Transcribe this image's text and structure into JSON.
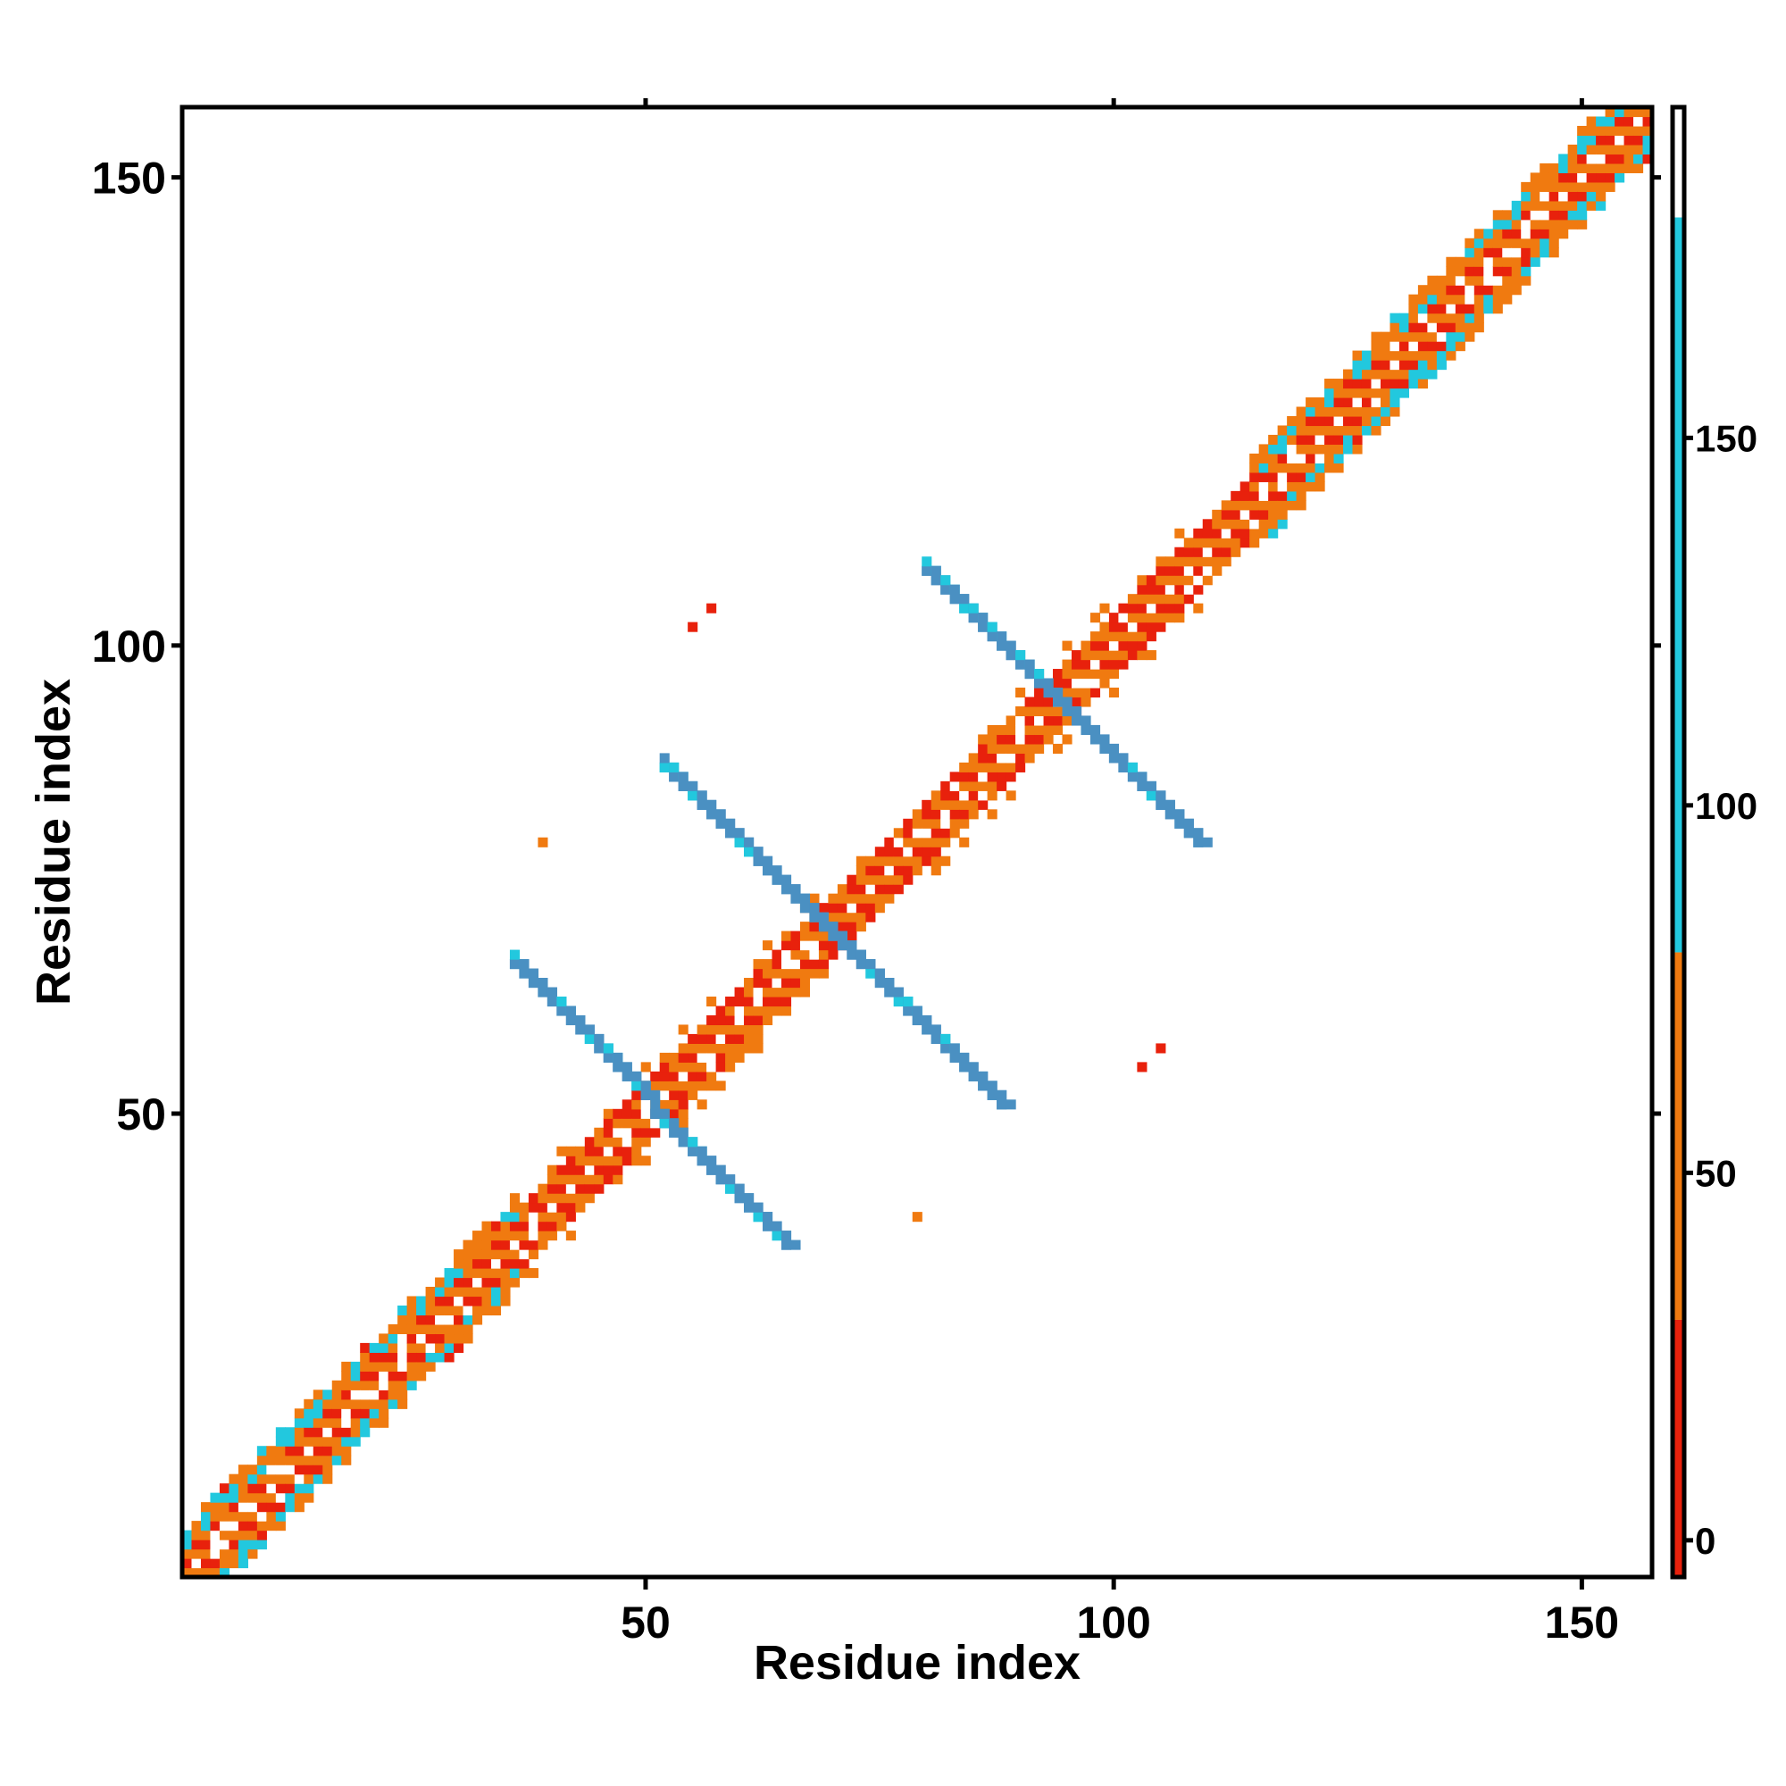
{
  "chart_data": {
    "type": "heatmap",
    "title": "",
    "xlabel": "Residue index",
    "ylabel": "Residue index",
    "xlim": [
      0.5,
      157.5
    ],
    "ylim": [
      0.5,
      157.5
    ],
    "xticks": [
      50,
      100,
      150
    ],
    "yticks": [
      50,
      100,
      150
    ],
    "grid": false,
    "colorbar": {
      "ticks": [
        0,
        50,
        100,
        150
      ],
      "range": [
        -5,
        195
      ],
      "bands": [
        {
          "from": -5,
          "to": 30,
          "color": "#e8210c"
        },
        {
          "from": 30,
          "to": 80,
          "color": "#f07a10"
        },
        {
          "from": 80,
          "to": 180,
          "color": "#22c8de"
        },
        {
          "from": 180,
          "to": 195,
          "color": "#ffffff"
        }
      ]
    },
    "diagonal_band": {
      "residues": [
        1,
        157
      ],
      "half_width": 5,
      "pattern": "alternating orange/red stripes with white and cyan speckles in the helical regions"
    },
    "contact_segments": [
      {
        "from": [
          36,
          66
        ],
        "to": [
          65,
          36
        ],
        "value": 150,
        "color": "#4a90c2"
      },
      {
        "from": [
          52,
          87
        ],
        "to": [
          88,
          51
        ],
        "value": 150,
        "color": "#4a90c2"
      },
      {
        "from": [
          80,
          108
        ],
        "to": [
          109,
          79
        ],
        "value": 150,
        "color": "#4a90c2"
      }
    ],
    "scattered_points": [
      {
        "x": 57,
        "y": 104,
        "value": 10
      },
      {
        "x": 55,
        "y": 102,
        "value": 10
      },
      {
        "x": 39,
        "y": 79,
        "value": 45
      },
      {
        "x": 105,
        "y": 57,
        "value": 10
      },
      {
        "x": 103,
        "y": 55,
        "value": 10
      },
      {
        "x": 79,
        "y": 39,
        "value": 45
      }
    ]
  }
}
